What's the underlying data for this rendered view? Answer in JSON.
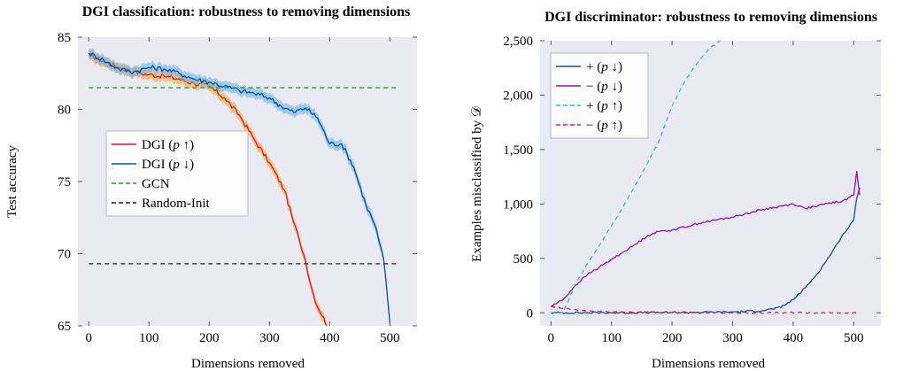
{
  "chart_data": [
    {
      "type": "line",
      "title": "DGI classification: robustness to removing dimensions",
      "xlabel": "Dimensions removed",
      "ylabel": "Test accuracy",
      "xlim": [
        -18,
        545
      ],
      "ylim": [
        65,
        85
      ],
      "xticks": [
        0,
        100,
        200,
        300,
        400,
        500
      ],
      "xtick_labels": [
        "0",
        "100",
        "200",
        "300",
        "400",
        "500"
      ],
      "yticks": [
        65,
        70,
        75,
        80,
        85
      ],
      "ytick_labels": [
        "65",
        "70",
        "75",
        "80",
        "85"
      ],
      "grid": false,
      "legend_position": "center-left",
      "series": [
        {
          "name": "DGI (p ↑)",
          "legend_main": "DGI (",
          "legend_sym": "p",
          "legend_arrow": " ↑",
          "legend_close": ")",
          "color": "#e8112d",
          "band_color": "#f5a623",
          "dashed": false,
          "x": [
            0,
            25,
            50,
            75,
            100,
            125,
            150,
            175,
            200,
            225,
            250,
            275,
            300,
            325,
            340,
            350,
            360,
            370,
            380,
            390,
            395
          ],
          "y": [
            83.8,
            83.3,
            82.9,
            82.6,
            82.4,
            82.3,
            82.1,
            81.8,
            81.6,
            80.8,
            79.6,
            77.9,
            76.3,
            74.4,
            72.2,
            70.9,
            69.5,
            67.6,
            66.3,
            65.6,
            65.0
          ]
        },
        {
          "name": "DGI (p ↓)",
          "legend_main": "DGI (",
          "legend_sym": "p",
          "legend_arrow": " ↓",
          "legend_close": ")",
          "color": "#0b4fa0",
          "band_color": "#5fb3e8",
          "dashed": false,
          "x": [
            0,
            25,
            50,
            75,
            100,
            125,
            150,
            175,
            200,
            225,
            250,
            275,
            300,
            320,
            340,
            360,
            380,
            400,
            420,
            440,
            460,
            475,
            490,
            500
          ],
          "y": [
            83.9,
            83.4,
            82.8,
            82.6,
            82.9,
            82.8,
            82.5,
            82.1,
            81.9,
            81.6,
            81.3,
            81.1,
            80.8,
            80.2,
            79.8,
            80.1,
            79.4,
            77.6,
            77.6,
            76.0,
            73.4,
            72.0,
            69.5,
            65.2
          ]
        },
        {
          "name": "GCN",
          "legend_main": "GCN",
          "legend_sym": "",
          "legend_arrow": "",
          "legend_close": "",
          "color": "#1aa51a",
          "dashed": true,
          "x": [
            0,
            512
          ],
          "y": [
            81.5,
            81.5
          ]
        },
        {
          "name": "Random-Init",
          "legend_main": "Random-Init",
          "legend_sym": "",
          "legend_arrow": "",
          "legend_close": "",
          "color": "#222222",
          "dashed": true,
          "x": [
            0,
            512
          ],
          "y": [
            69.3,
            69.3
          ]
        }
      ]
    },
    {
      "type": "line",
      "title": "DGI discriminator: robustness to removing dimensions",
      "xlabel": "Dimensions removed",
      "ylabel": "Examples misclassified by 𝒟",
      "xlim": [
        -18,
        545
      ],
      "ylim": [
        -120,
        2500
      ],
      "xticks": [
        0,
        100,
        200,
        300,
        400,
        500
      ],
      "xtick_labels": [
        "0",
        "100",
        "200",
        "300",
        "400",
        "500"
      ],
      "yticks": [
        0,
        500,
        1000,
        1500,
        2000,
        2500
      ],
      "ytick_labels": [
        "0",
        "500",
        "1,000",
        "1,500",
        "2,000",
        "2,500"
      ],
      "grid": false,
      "legend_position": "top-left",
      "series": [
        {
          "name": "+ (p ↓)",
          "legend_main": "+ (",
          "legend_sym": "p",
          "legend_arrow": " ↓",
          "legend_close": ")",
          "color": "#0b4fa0",
          "dashed": false,
          "x": [
            0,
            100,
            200,
            300,
            350,
            380,
            400,
            420,
            440,
            460,
            480,
            500,
            505,
            510
          ],
          "y": [
            0,
            0,
            2,
            8,
            20,
            50,
            120,
            230,
            360,
            520,
            700,
            850,
            1050,
            1150
          ]
        },
        {
          "name": "− (p ↓)",
          "legend_main": "− (",
          "legend_sym": "p",
          "legend_arrow": " ↓",
          "legend_close": ")",
          "color": "#8e10b8",
          "dashed": false,
          "x": [
            0,
            20,
            40,
            60,
            80,
            100,
            120,
            140,
            160,
            180,
            200,
            250,
            300,
            350,
            400,
            420,
            440,
            460,
            480,
            500,
            505,
            510
          ],
          "y": [
            60,
            120,
            250,
            350,
            420,
            490,
            560,
            630,
            710,
            750,
            760,
            830,
            880,
            950,
            1000,
            960,
            980,
            1010,
            1020,
            1080,
            1300,
            1080
          ]
        },
        {
          "name": "+ (p ↑)",
          "legend_main": "+ (",
          "legend_sym": "p",
          "legend_arrow": " ↑",
          "legend_close": ")",
          "color": "#29b6e8",
          "dashed": true,
          "x": [
            0,
            20,
            40,
            60,
            80,
            100,
            120,
            140,
            160,
            180,
            200,
            220,
            240,
            260,
            280
          ],
          "y": [
            0,
            0,
            260,
            450,
            620,
            800,
            980,
            1180,
            1380,
            1600,
            1900,
            2120,
            2280,
            2420,
            2500
          ]
        },
        {
          "name": "− (p ↑)",
          "legend_main": "− (",
          "legend_sym": "p",
          "legend_arrow": " ↑",
          "legend_close": ")",
          "color": "#e0203e",
          "dashed": true,
          "x": [
            0,
            20,
            50,
            100,
            150,
            200,
            300,
            400,
            510
          ],
          "y": [
            55,
            40,
            20,
            10,
            5,
            2,
            0,
            0,
            0
          ]
        }
      ]
    }
  ]
}
